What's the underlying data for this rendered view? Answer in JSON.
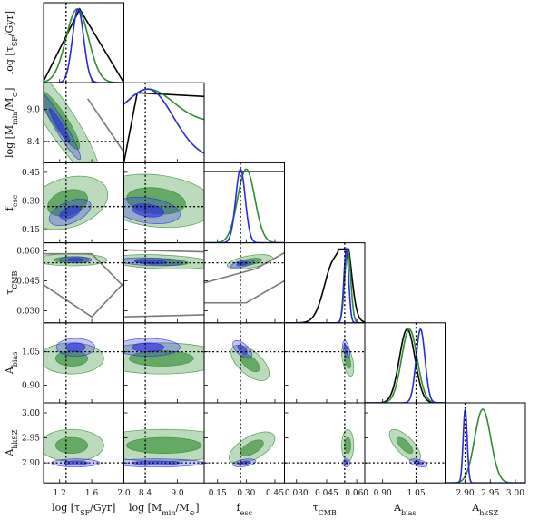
{
  "chart_data": {
    "type": "corner",
    "parameters": [
      {
        "key": "logtau",
        "label": "log [τ_SF/Gyr]",
        "ticks": [
          1.2,
          1.6,
          2.0
        ],
        "tick_labels": [
          "1.2",
          "1.6",
          "2.0"
        ],
        "range": [
          1.0,
          2.0
        ],
        "truth": 1.28
      },
      {
        "key": "logMmin",
        "label": "log [M_min/M_⊙]",
        "ticks": [
          8.4,
          9.0
        ],
        "tick_labels": [
          "8.4",
          "9.0"
        ],
        "range": [
          8.0,
          9.5
        ],
        "truth": 8.4
      },
      {
        "key": "fesc",
        "label": "f_esc",
        "ticks": [
          0.15,
          0.3,
          0.45
        ],
        "tick_labels": [
          "0.15",
          "0.30",
          "0.45"
        ],
        "range": [
          0.08,
          0.5
        ],
        "truth": 0.27
      },
      {
        "key": "tauCMB",
        "label": "τ_CMB",
        "ticks": [
          0.03,
          0.045,
          0.06
        ],
        "tick_labels": [
          "0.030",
          "0.045",
          "0.060"
        ],
        "range": [
          0.024,
          0.064
        ],
        "truth": 0.054
      },
      {
        "key": "Abias",
        "label": "A_bias",
        "ticks": [
          0.9,
          1.05
        ],
        "tick_labels": [
          "0.90",
          "1.05"
        ],
        "range": [
          0.82,
          1.18
        ],
        "truth": 1.05
      },
      {
        "key": "AhkSZ",
        "label": "A_hkSZ",
        "ticks": [
          2.9,
          2.95,
          3.0
        ],
        "tick_labels": [
          "2.90",
          "2.95",
          "3.00"
        ],
        "range": [
          2.86,
          3.02
        ],
        "truth": 2.9
      }
    ],
    "series": [
      {
        "color": "#000000",
        "style": "line only (1D) / grey bounds (2D)"
      },
      {
        "color": "#2e8b2e",
        "style": "filled contours"
      },
      {
        "color": "#2a2ae0",
        "style": "filled contours"
      }
    ],
    "marginals": [
      {
        "param": "logtau",
        "black": {
          "kind": "tri",
          "a": 1.0,
          "peak": 1.45,
          "b": 2.0
        },
        "green": {
          "kind": "gauss",
          "mu": 1.42,
          "sd": 0.14
        },
        "blue": {
          "kind": "gauss",
          "mu": 1.43,
          "sd": 0.07
        }
      },
      {
        "param": "logMmin",
        "black": {
          "kind": "flat_drop",
          "start": 8.25,
          "level": 0.95
        },
        "green": {
          "kind": "shoulder",
          "peak": 8.45,
          "tail": 0.55
        },
        "blue": {
          "kind": "shoulder",
          "peak": 8.45,
          "tail": 0.05
        }
      },
      {
        "param": "fesc",
        "black": {
          "kind": "flat",
          "level": 0.97
        },
        "green": {
          "kind": "gauss",
          "mu": 0.3,
          "sd": 0.045
        },
        "blue": {
          "kind": "gauss",
          "mu": 0.27,
          "sd": 0.025
        }
      },
      {
        "param": "tauCMB",
        "black": {
          "kind": "bimodal",
          "m1": 0.049,
          "m2": 0.055,
          "sd": 0.005
        },
        "green": {
          "kind": "gauss",
          "mu": 0.0555,
          "sd": 0.0015
        },
        "blue": {
          "kind": "gauss",
          "mu": 0.0548,
          "sd": 0.0012
        }
      },
      {
        "param": "Abias",
        "black": {
          "kind": "gauss",
          "mu": 1.01,
          "sd": 0.035
        },
        "green": {
          "kind": "gauss",
          "mu": 1.02,
          "sd": 0.035
        },
        "blue": {
          "kind": "gauss",
          "mu": 1.07,
          "sd": 0.02
        }
      },
      {
        "param": "AhkSZ",
        "green": {
          "kind": "gauss",
          "mu": 2.935,
          "sd": 0.016
        },
        "blue": {
          "kind": "gauss",
          "mu": 2.9,
          "sd": 0.004
        }
      }
    ],
    "joint": [
      {
        "row": 1,
        "col": 0,
        "green": {
          "cx": 1.2,
          "cy": 8.8,
          "sx": 0.25,
          "sy": 0.55,
          "rho": -0.9
        },
        "blue": {
          "cx": 1.2,
          "cy": 8.7,
          "sx": 0.13,
          "sy": 0.32,
          "rho": -0.95
        }
      },
      {
        "row": 2,
        "col": 0,
        "green": {
          "cx": 1.3,
          "cy": 0.29,
          "sx": 0.25,
          "sy": 0.07,
          "rho": 0.3
        },
        "blue": {
          "cx": 1.33,
          "cy": 0.24,
          "sx": 0.13,
          "sy": 0.035,
          "rho": 0.5
        }
      },
      {
        "row": 2,
        "col": 1,
        "green": {
          "cx": 8.6,
          "cy": 0.3,
          "sx": 0.55,
          "sy": 0.07,
          "rho": -0.2
        },
        "blue": {
          "cx": 8.45,
          "cy": 0.25,
          "sx": 0.3,
          "sy": 0.035,
          "rho": -0.3
        }
      },
      {
        "row": 3,
        "col": 0,
        "green": {
          "cx": 1.35,
          "cy": 0.0555,
          "sx": 0.22,
          "sy": 0.0015,
          "rho": 0
        },
        "blue": {
          "cx": 1.4,
          "cy": 0.0555,
          "sx": 0.1,
          "sy": 0.0008,
          "rho": 0
        }
      },
      {
        "row": 3,
        "col": 1,
        "green": {
          "cx": 8.7,
          "cy": 0.0545,
          "sx": 0.5,
          "sy": 0.0018,
          "rho": -0.3
        },
        "blue": {
          "cx": 8.5,
          "cy": 0.0545,
          "sx": 0.3,
          "sy": 0.001,
          "rho": -0.3
        }
      },
      {
        "row": 3,
        "col": 2,
        "green": {
          "cx": 0.32,
          "cy": 0.0545,
          "sx": 0.06,
          "sy": 0.0018,
          "rho": 0.5
        },
        "blue": {
          "cx": 0.28,
          "cy": 0.0535,
          "sx": 0.03,
          "sy": 0.001,
          "rho": 0.6
        }
      },
      {
        "row": 3,
        "col": 3,
        "green": {
          "cx": 0.0555,
          "cy": 0.0555,
          "sx": 0.0015,
          "sy": 0.0015,
          "rho": 0
        },
        "blue": {
          "cx": 0.0548,
          "cy": 0.0548,
          "sx": 0.0012,
          "sy": 0.0012,
          "rho": 0
        }
      },
      {
        "row": 4,
        "col": 0,
        "green": {
          "cx": 1.35,
          "cy": 1.02,
          "sx": 0.2,
          "sy": 0.035,
          "rho": 0
        },
        "blue": {
          "cx": 1.4,
          "cy": 1.07,
          "sx": 0.12,
          "sy": 0.02,
          "rho": 0
        }
      },
      {
        "row": 4,
        "col": 1,
        "green": {
          "cx": 8.7,
          "cy": 1.02,
          "sx": 0.6,
          "sy": 0.035,
          "rho": 0
        },
        "blue": {
          "cx": 8.45,
          "cy": 1.07,
          "sx": 0.3,
          "sy": 0.02,
          "rho": 0
        }
      },
      {
        "row": 4,
        "col": 2,
        "green": {
          "cx": 0.32,
          "cy": 1.0,
          "sx": 0.05,
          "sy": 0.04,
          "rho": -0.6
        },
        "blue": {
          "cx": 0.28,
          "cy": 1.06,
          "sx": 0.025,
          "sy": 0.02,
          "rho": -0.6
        }
      },
      {
        "row": 4,
        "col": 3,
        "green": {
          "cx": 0.0555,
          "cy": 1.01,
          "sx": 0.0015,
          "sy": 0.035,
          "rho": -0.5
        },
        "blue": {
          "cx": 0.0548,
          "cy": 1.06,
          "sx": 0.0009,
          "sy": 0.02,
          "rho": -0.5
        }
      },
      {
        "row": 5,
        "col": 0,
        "green": {
          "cx": 1.35,
          "cy": 2.935,
          "sx": 0.2,
          "sy": 0.016,
          "rho": 0
        },
        "blue": {
          "cx": 1.4,
          "cy": 2.9,
          "sx": 0.15,
          "sy": 0.004,
          "rho": 0
        }
      },
      {
        "row": 5,
        "col": 1,
        "green": {
          "cx": 8.75,
          "cy": 2.935,
          "sx": 0.7,
          "sy": 0.016,
          "rho": 0
        },
        "blue": {
          "cx": 8.6,
          "cy": 2.9,
          "sx": 0.45,
          "sy": 0.004,
          "rho": 0
        }
      },
      {
        "row": 5,
        "col": 2,
        "green": {
          "cx": 0.33,
          "cy": 2.93,
          "sx": 0.06,
          "sy": 0.016,
          "rho": 0.6
        },
        "blue": {
          "cx": 0.29,
          "cy": 2.9,
          "sx": 0.03,
          "sy": 0.004,
          "rho": 0.4
        }
      },
      {
        "row": 5,
        "col": 3,
        "green": {
          "cx": 0.0555,
          "cy": 2.935,
          "sx": 0.0015,
          "sy": 0.016,
          "rho": 0
        },
        "blue": {
          "cx": 0.0548,
          "cy": 2.9,
          "sx": 0.0009,
          "sy": 0.004,
          "rho": 0
        }
      },
      {
        "row": 5,
        "col": 4,
        "green": {
          "cx": 1.0,
          "cy": 2.935,
          "sx": 0.035,
          "sy": 0.016,
          "rho": -0.7
        },
        "blue": {
          "cx": 1.06,
          "cy": 2.9,
          "sx": 0.02,
          "sy": 0.004,
          "rho": -0.5
        }
      }
    ],
    "black_bounds_2d": [
      {
        "row": 1,
        "col": 0,
        "lines": [
          [
            [
              1.55,
              9.2
            ],
            [
              2.0,
              8.2
            ]
          ]
        ]
      },
      {
        "row": 3,
        "col": 0,
        "lines": [
          [
            [
              1.0,
              0.0585
            ],
            [
              1.6,
              0.0585
            ],
            [
              2.0,
              0.042
            ]
          ],
          [
            [
              1.0,
              0.043
            ],
            [
              1.6,
              0.027
            ],
            [
              2.0,
              0.044
            ]
          ]
        ]
      },
      {
        "row": 3,
        "col": 1,
        "lines": [
          [
            [
              8.0,
              0.0605
            ],
            [
              9.5,
              0.0595
            ]
          ],
          [
            [
              8.0,
              0.027
            ],
            [
              9.5,
              0.028
            ]
          ]
        ]
      },
      {
        "row": 3,
        "col": 2,
        "lines": [
          [
            [
              0.08,
              0.044
            ],
            [
              0.35,
              0.051
            ],
            [
              0.5,
              0.059
            ]
          ],
          [
            [
              0.08,
              0.034
            ],
            [
              0.3,
              0.034
            ],
            [
              0.5,
              0.045
            ]
          ]
        ]
      }
    ]
  }
}
